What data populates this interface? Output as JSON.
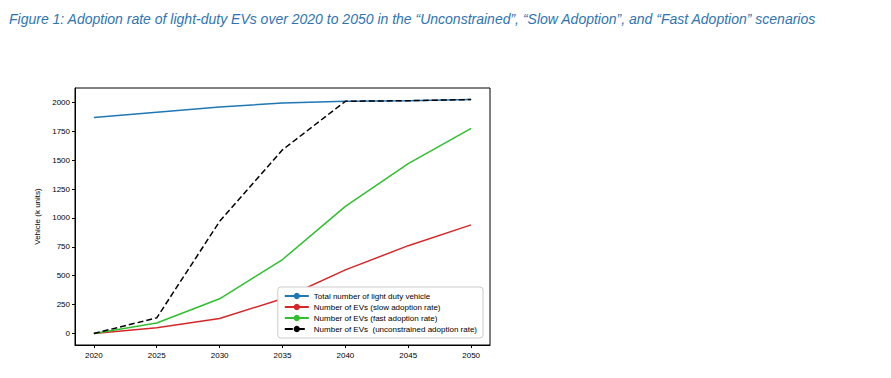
{
  "chart_data": {
    "type": "line",
    "title": "Figure 1: Adoption rate of light-duty EVs over 2020 to 2050 in the “Unconstrained”, “Slow Adoption”, and “Fast Adoption” scenarios",
    "ylabel": "Vehicle (k units)",
    "x": [
      2020,
      2025,
      2030,
      2035,
      2040,
      2045,
      2050
    ],
    "series": [
      {
        "name": "Total number of light duty vehicle",
        "color": "#1f77b4",
        "line_style": "solid",
        "values": [
          1870,
          1915,
          1960,
          1995,
          2010,
          2015,
          2025
        ]
      },
      {
        "name": "Number of EVs (slow adoption rate)",
        "color": "#d62728",
        "line_style": "solid",
        "values": [
          0,
          50,
          130,
          300,
          550,
          760,
          940
        ]
      },
      {
        "name": "Number of EVs (fast adoption rate)",
        "color": "#2fbf2f",
        "line_style": "solid",
        "values": [
          0,
          90,
          300,
          640,
          1100,
          1470,
          1775
        ]
      },
      {
        "name": "Number of EVs  (unconstrained adoption rate)",
        "color": "#000000",
        "line_style": "dashed",
        "values": [
          0,
          135,
          970,
          1590,
          2010,
          2015,
          2025
        ]
      }
    ],
    "xlim": [
      2018.5,
      2051.5
    ],
    "xticks": [
      2020,
      2025,
      2030,
      2035,
      2040,
      2045,
      2050
    ],
    "ylim": [
      -100,
      2125
    ],
    "yticks": [
      0,
      250,
      500,
      750,
      1000,
      1250,
      1500,
      1750,
      2000
    ],
    "grid": false,
    "legend": "lower right"
  }
}
